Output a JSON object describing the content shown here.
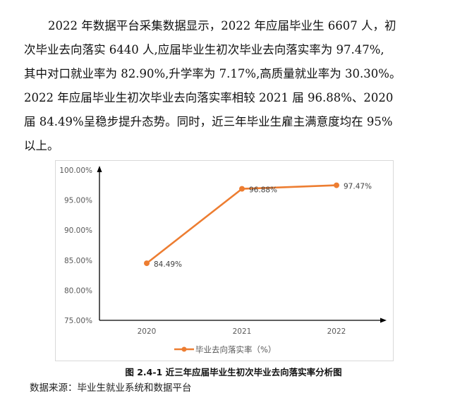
{
  "paragraph": {
    "lines": [
      "2022 年数据平台采集数据显示，2022 年应届毕业生 6607 人，初",
      "次毕业去向落实 6440 人,应届毕业生初次毕业去向落实率为 97.47%,",
      "其中对口就业率为 82.90%,升学率为 7.17%,高质量就业率为 30.30%。",
      "2022 年应届毕业生初次毕业去向落实率相较 2021 届 96.88%、2020",
      "届 84.49%呈稳步提升态势。同时，近三年毕业生雇主满意度均在 95%",
      "以上。"
    ]
  },
  "chart_data": {
    "type": "line",
    "title": "",
    "categories": [
      "2020",
      "2021",
      "2022"
    ],
    "series": [
      {
        "name": "毕业去向落实率（%）",
        "values": [
          84.49,
          96.88,
          97.47
        ],
        "color": "#ED7D31"
      }
    ],
    "data_labels": [
      "84.49%",
      "96.88%",
      "97.47%"
    ],
    "xlabel": "",
    "ylabel": "",
    "ylim": [
      75,
      100
    ],
    "y_ticks": [
      "100.00%",
      "95.00%",
      "90.00%",
      "85.00%",
      "80.00%",
      "75.00%"
    ],
    "grid": false,
    "legend_position": "bottom"
  },
  "legend": {
    "label": "毕业去向落实率（%）"
  },
  "caption": "图 2.4-1  近三年应届毕业生初次毕业去向落实率分析图",
  "source": "数据来源：毕业生就业系统和数据平台"
}
